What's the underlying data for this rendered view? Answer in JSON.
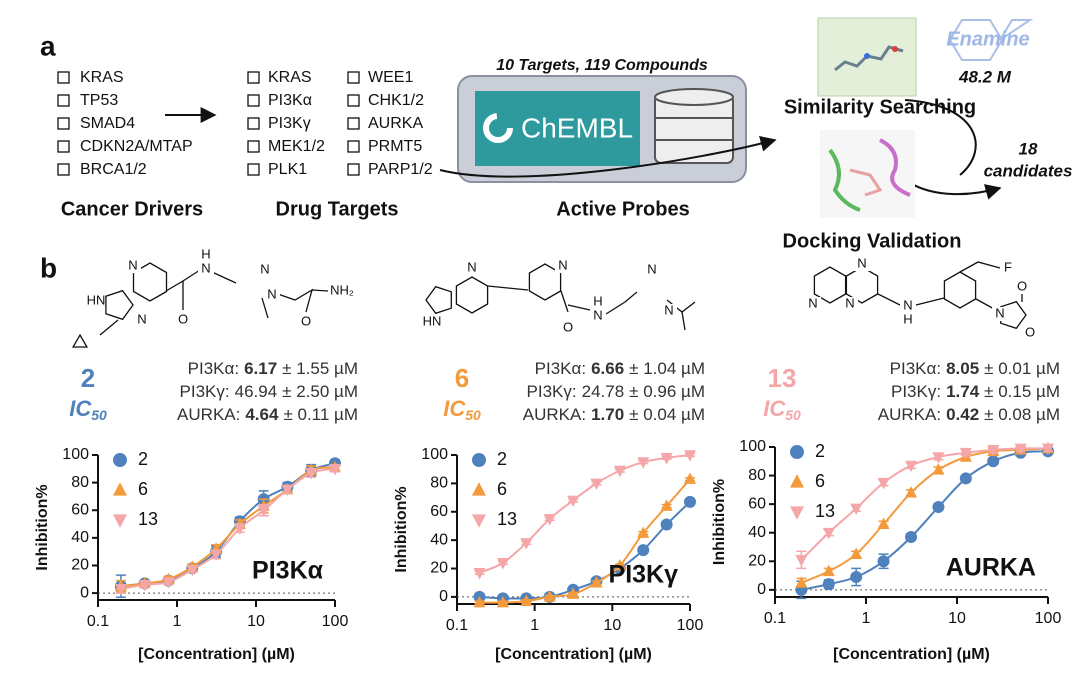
{
  "panel_a": {
    "label": "a",
    "cancer_drivers": {
      "items": [
        "KRAS",
        "TP53",
        "SMAD4",
        "CDKN2A/MTAP",
        "BRCA1/2"
      ],
      "title": "Cancer Drivers"
    },
    "drug_targets": {
      "items": [
        "KRAS",
        "PI3Kα",
        "PI3Kγ",
        "MEK1/2",
        "PLK1",
        "WEE1",
        "CHK1/2",
        "AURKA",
        "PRMT5",
        "PARP1/2"
      ],
      "title": "Drug Targets"
    },
    "active_probes": {
      "header": "10 Targets, 119 Compounds",
      "logo": "ChEMBL",
      "title": "Active Probes"
    },
    "similarity": {
      "title": "Similarity Searching",
      "library_logo": "Enamine",
      "library_size": "48.2 M"
    },
    "docking": {
      "title": "Docking Validation",
      "result": [
        "18",
        "candidates"
      ]
    }
  },
  "panel_b": {
    "label": "b",
    "ic50": {
      "main": "IC",
      "sub": "50"
    },
    "compounds": [
      {
        "id": "2",
        "color": "#4f81bd",
        "atoms": [
          "N",
          "HN",
          "N",
          "O",
          "H",
          "N",
          "N",
          "N",
          "O",
          "NH₂"
        ],
        "activities": [
          {
            "target": "PI3Kα:",
            "value": "6.17",
            "error": "± 1.55 µM",
            "bold": true
          },
          {
            "target": "PI3Kγ:",
            "value": "46.94",
            "error": "± 2.50 µM",
            "bold": false
          },
          {
            "target": "AURKA:",
            "value": "4.64",
            "error": "± 0.11 µM",
            "bold": true
          }
        ]
      },
      {
        "id": "6",
        "color": "#f39a3c",
        "atoms": [
          "N",
          "HN",
          "N",
          "O",
          "H",
          "N",
          "N",
          "N"
        ],
        "activities": [
          {
            "target": "PI3Kα:",
            "value": "6.66",
            "error": "± 1.04 µM",
            "bold": true
          },
          {
            "target": "PI3Kγ:",
            "value": "24.78",
            "error": "± 0.96 µM",
            "bold": false
          },
          {
            "target": "AURKA:",
            "value": "1.70",
            "error": "± 0.04 µM",
            "bold": true
          }
        ]
      },
      {
        "id": "13",
        "color": "#f4a6a8",
        "atoms": [
          "N",
          "N",
          "N",
          "N",
          "H",
          "F",
          "N",
          "O",
          "O"
        ],
        "activities": [
          {
            "target": "PI3Kα:",
            "value": "8.05",
            "error": "± 0.01 µM",
            "bold": true
          },
          {
            "target": "PI3Kγ:",
            "value": "1.74",
            "error": "± 0.15 µM",
            "bold": true
          },
          {
            "target": "AURKA:",
            "value": "0.42",
            "error": "± 0.08 µM",
            "bold": true
          }
        ]
      }
    ]
  },
  "chart_data": [
    {
      "type": "line",
      "title": "PI3Kα",
      "xlabel": "[Concentration]  (µM)",
      "ylabel": "Inhibition%",
      "x": [
        0.195,
        0.39,
        0.78,
        1.56,
        3.125,
        6.25,
        12.5,
        25,
        50,
        100
      ],
      "xscale": "log",
      "xlim": [
        0.1,
        100
      ],
      "xticks": [
        0.1,
        1,
        10,
        100
      ],
      "ylim": [
        -5,
        100
      ],
      "yticks": [
        0,
        20,
        40,
        60,
        80,
        100
      ],
      "series": [
        {
          "name": "2",
          "color": "#4f81bd",
          "marker": "circle",
          "values": [
            5,
            7,
            9,
            18,
            30,
            52,
            68,
            77,
            89,
            94
          ],
          "errors": [
            8,
            2,
            2,
            2,
            4,
            3,
            6,
            3,
            4,
            2
          ]
        },
        {
          "name": "6",
          "color": "#f39a3c",
          "marker": "triangle-up",
          "values": [
            5,
            7,
            10,
            19,
            32,
            50,
            63,
            75,
            89,
            91
          ],
          "errors": [
            4,
            2,
            2,
            2,
            3,
            3,
            5,
            3,
            3,
            2
          ]
        },
        {
          "name": "13",
          "color": "#f4a6a8",
          "marker": "triangle-down",
          "values": [
            3,
            6,
            8,
            17,
            28,
            47,
            60,
            75,
            87,
            90
          ],
          "errors": [
            3,
            2,
            2,
            2,
            3,
            3,
            4,
            3,
            3,
            2
          ]
        }
      ]
    },
    {
      "type": "line",
      "title": "PI3Kγ",
      "xlabel": "[Concentration]  (µM)",
      "ylabel": "Inhibition%",
      "x": [
        0.195,
        0.39,
        0.78,
        1.56,
        3.125,
        6.25,
        12.5,
        25,
        50,
        100
      ],
      "xscale": "log",
      "xlim": [
        0.1,
        100
      ],
      "xticks": [
        0.1,
        1,
        10,
        100
      ],
      "ylim": [
        -5,
        100
      ],
      "yticks": [
        0,
        20,
        40,
        60,
        80,
        100
      ],
      "series": [
        {
          "name": "2",
          "color": "#4f81bd",
          "marker": "circle",
          "values": [
            0,
            -1,
            -1,
            0,
            5,
            11,
            20,
            33,
            51,
            67
          ],
          "errors": [
            2,
            2,
            2,
            2,
            2,
            2,
            2,
            2,
            2,
            2
          ]
        },
        {
          "name": "6",
          "color": "#f39a3c",
          "marker": "triangle-up",
          "values": [
            -4,
            -4,
            -3,
            0,
            2,
            10,
            22,
            45,
            64,
            83
          ],
          "errors": [
            1,
            1,
            1,
            1,
            1,
            1,
            1,
            1,
            1,
            1
          ]
        },
        {
          "name": "13",
          "color": "#f4a6a8",
          "marker": "triangle-down",
          "values": [
            17,
            24,
            38,
            55,
            68,
            80,
            89,
            95,
            98,
            100
          ],
          "errors": [
            1,
            1,
            1,
            1,
            1,
            1,
            1,
            1,
            1,
            1
          ]
        }
      ]
    },
    {
      "type": "line",
      "title": "AURKA",
      "xlabel": "[Concentration]  (µM)",
      "ylabel": "Inhibition%",
      "x": [
        0.195,
        0.39,
        0.78,
        1.56,
        3.125,
        6.25,
        12.5,
        25,
        50,
        100
      ],
      "xscale": "log",
      "xlim": [
        0.1,
        100
      ],
      "xticks": [
        0.1,
        1,
        10,
        100
      ],
      "ylim": [
        -5,
        100
      ],
      "yticks": [
        0,
        20,
        40,
        60,
        80,
        100
      ],
      "series": [
        {
          "name": "2",
          "color": "#4f81bd",
          "marker": "circle",
          "values": [
            0,
            4,
            9,
            20,
            37,
            58,
            78,
            90,
            96,
            97
          ],
          "errors": [
            6,
            3,
            6,
            5,
            2,
            2,
            2,
            2,
            2,
            2
          ]
        },
        {
          "name": "6",
          "color": "#f39a3c",
          "marker": "triangle-up",
          "values": [
            5,
            13,
            25,
            46,
            68,
            84,
            93,
            97,
            98,
            99
          ],
          "errors": [
            3,
            2,
            2,
            2,
            2,
            2,
            2,
            2,
            2,
            2
          ]
        },
        {
          "name": "13",
          "color": "#f4a6a8",
          "marker": "triangle-down",
          "values": [
            21,
            40,
            57,
            75,
            87,
            93,
            96,
            98,
            99,
            99
          ],
          "errors": [
            6,
            2,
            2,
            2,
            2,
            2,
            2,
            2,
            2,
            2
          ]
        }
      ]
    }
  ]
}
